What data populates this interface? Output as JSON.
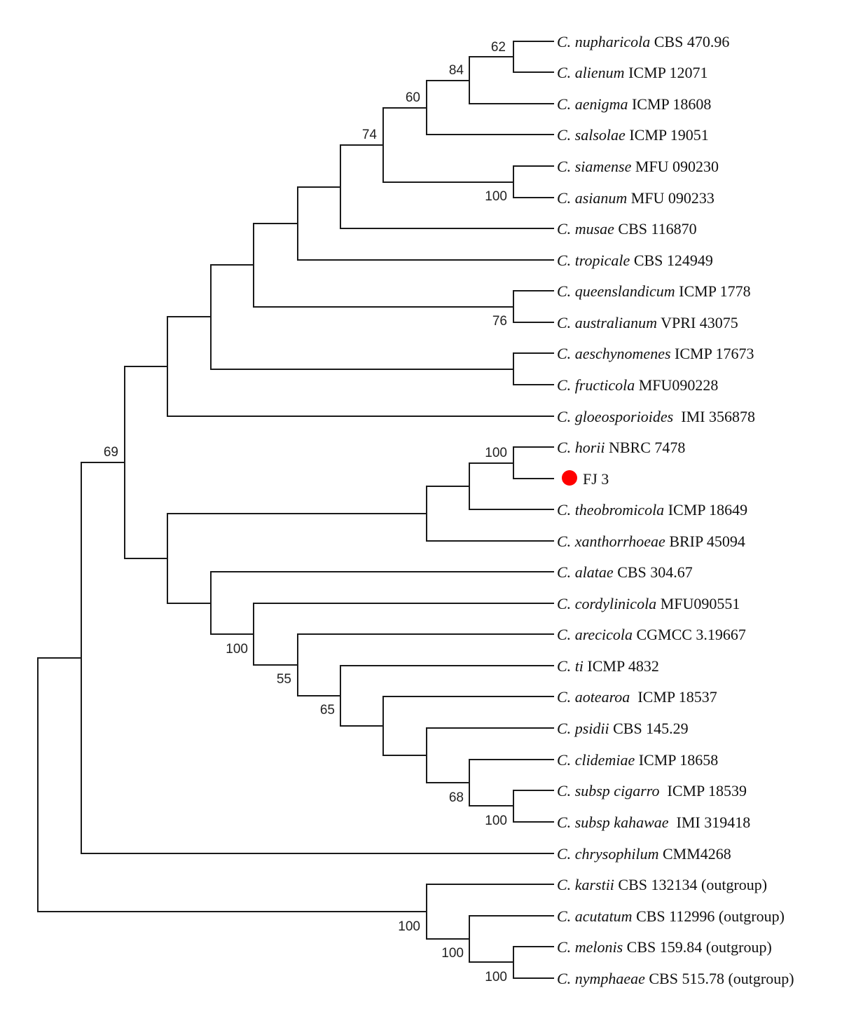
{
  "figure": {
    "type": "phylogenetic-tree",
    "marker_color": "#ff0000"
  },
  "taxa": [
    {
      "genus": "C.",
      "species": "nupharicola",
      "strain": "CBS 470.96"
    },
    {
      "genus": "C.",
      "species": "alienum",
      "strain": "ICMP 12071"
    },
    {
      "genus": "C.",
      "species": "aenigma",
      "strain": "ICMP 18608"
    },
    {
      "genus": "C.",
      "species": "salsolae",
      "strain": "ICMP 19051"
    },
    {
      "genus": "C.",
      "species": "siamense",
      "strain": "MFU 090230"
    },
    {
      "genus": "C.",
      "species": "asianum",
      "strain": "MFU 090233"
    },
    {
      "genus": "C.",
      "species": "musae",
      "strain": "CBS 116870"
    },
    {
      "genus": "C.",
      "species": "tropicale",
      "strain": "CBS 124949"
    },
    {
      "genus": "C.",
      "species": "queenslandicum",
      "strain": "ICMP 1778"
    },
    {
      "genus": "C.",
      "species": "australianum",
      "strain": "VPRI 43075"
    },
    {
      "genus": "C.",
      "species": "aeschynomenes",
      "strain": "ICMP 17673"
    },
    {
      "genus": "C.",
      "species": "fructicola",
      "strain": "MFU090228"
    },
    {
      "genus": "C.",
      "species": "gloeosporioides",
      "strain": " IMI 356878"
    },
    {
      "genus": "C.",
      "species": "horii",
      "strain": "NBRC 7478"
    },
    {
      "genus": "",
      "species": "",
      "strain": "FJ 3",
      "highlight": true
    },
    {
      "genus": "C.",
      "species": "theobromicola",
      "strain": "ICMP 18649"
    },
    {
      "genus": "C.",
      "species": "xanthorrhoeae",
      "strain": "BRIP 45094"
    },
    {
      "genus": "C.",
      "species": "alatae",
      "strain": "CBS 304.67"
    },
    {
      "genus": "C.",
      "species": "cordylinicola",
      "strain": "MFU090551"
    },
    {
      "genus": "C.",
      "species": "arecicola",
      "strain": "CGMCC 3.19667"
    },
    {
      "genus": "C.",
      "species": "ti",
      "strain": "ICMP 4832"
    },
    {
      "genus": "C.",
      "species": "aotearoa",
      "strain": " ICMP 18537"
    },
    {
      "genus": "C.",
      "species": "psidii",
      "strain": "CBS 145.29"
    },
    {
      "genus": "C.",
      "species": "clidemiae",
      "strain": "ICMP 18658"
    },
    {
      "genus": "C.",
      "species": "subsp cigarro",
      "strain": " ICMP 18539"
    },
    {
      "genus": "C.",
      "species": "subsp kahawae",
      "strain": " IMI 319418"
    },
    {
      "genus": "C.",
      "species": "chrysophilum",
      "strain": "CMM4268"
    },
    {
      "genus": "C.",
      "species": "karstii",
      "strain": "CBS 132134 (outgroup)"
    },
    {
      "genus": "C.",
      "species": "acutatum",
      "strain": "CBS 112996 (outgroup)"
    },
    {
      "genus": "C.",
      "species": "melonis",
      "strain": "CBS 159.84 (outgroup)"
    },
    {
      "genus": "C.",
      "species": "nymphaeae",
      "strain": "CBS 515.78 (outgroup)"
    }
  ],
  "bootstrap": [
    "62",
    "84",
    "60",
    "74",
    "100",
    "76",
    "69",
    "100",
    "100",
    "55",
    "65",
    "68",
    "100",
    "100",
    "100",
    "100"
  ]
}
